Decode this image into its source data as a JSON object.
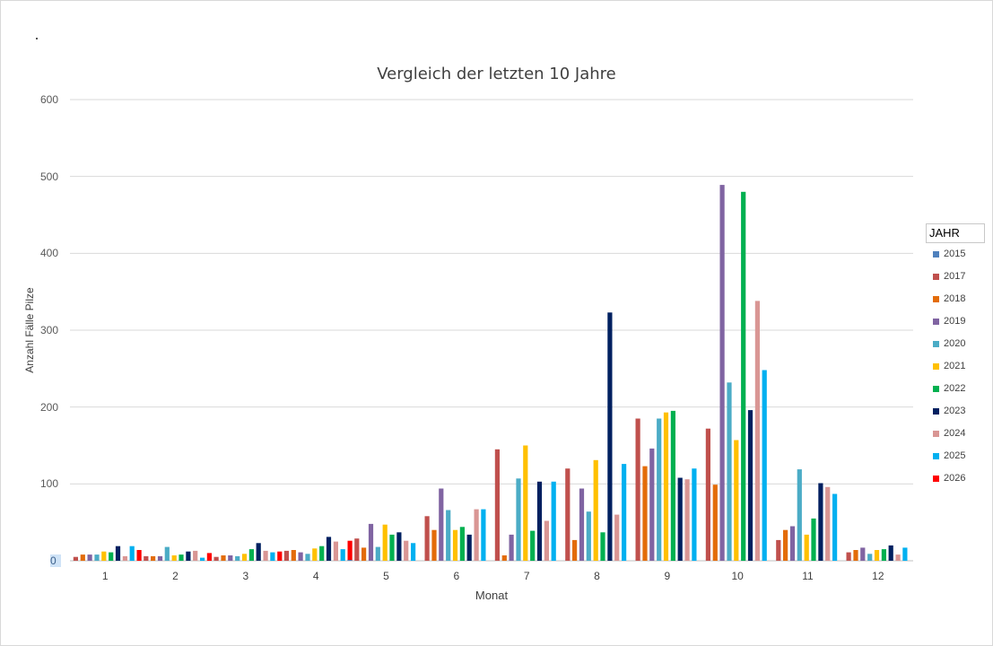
{
  "chart_data": {
    "type": "bar",
    "title": "Vergleich der letzten 10 Jahre",
    "xlabel": "Monat",
    "ylabel": "Anzahl Fälle Pilze",
    "ylim": [
      0,
      600
    ],
    "yticks": [
      "0",
      "100",
      "200",
      "300",
      "400",
      "500",
      "600"
    ],
    "grid": true,
    "legend_position": "right",
    "legend_title": "JAHR",
    "categories": [
      "1",
      "2",
      "3",
      "4",
      "5",
      "6",
      "7",
      "8",
      "9",
      "10",
      "11",
      "12"
    ],
    "series": [
      {
        "name": "2015",
        "color": "#4f81bd",
        "values": [
          null,
          null,
          null,
          null,
          1,
          null,
          null,
          null,
          null,
          null,
          null,
          null
        ]
      },
      {
        "name": "2017",
        "color": "#c0504d",
        "values": [
          5,
          6,
          5,
          13,
          29,
          58,
          145,
          120,
          185,
          172,
          27,
          11
        ]
      },
      {
        "name": "2018",
        "color": "#e36c09",
        "values": [
          8,
          6,
          7,
          14,
          17,
          40,
          7,
          27,
          123,
          99,
          40,
          14
        ]
      },
      {
        "name": "2019",
        "color": "#8064a2",
        "values": [
          8,
          6,
          7,
          11,
          48,
          94,
          34,
          94,
          146,
          489,
          45,
          17
        ]
      },
      {
        "name": "2020",
        "color": "#4bacc6",
        "values": [
          8,
          18,
          6,
          9,
          18,
          66,
          107,
          64,
          185,
          232,
          119,
          9
        ]
      },
      {
        "name": "2021",
        "color": "#ffc000",
        "values": [
          12,
          7,
          9,
          16,
          47,
          40,
          150,
          131,
          193,
          157,
          34,
          14
        ]
      },
      {
        "name": "2022",
        "color": "#00b050",
        "values": [
          11,
          8,
          15,
          19,
          34,
          44,
          39,
          37,
          195,
          480,
          55,
          15
        ]
      },
      {
        "name": "2023",
        "color": "#002060",
        "values": [
          19,
          12,
          23,
          31,
          37,
          34,
          103,
          323,
          108,
          196,
          101,
          20
        ]
      },
      {
        "name": "2024",
        "color": "#d99694",
        "values": [
          6,
          13,
          13,
          25,
          26,
          67,
          52,
          60,
          106,
          338,
          96,
          8
        ]
      },
      {
        "name": "2025",
        "color": "#00b0f0",
        "values": [
          19,
          4,
          11,
          15,
          23,
          67,
          103,
          126,
          120,
          248,
          87,
          17
        ]
      },
      {
        "name": "2026",
        "color": "#ff0000",
        "values": [
          14,
          10,
          12,
          26,
          null,
          null,
          null,
          null,
          null,
          null,
          null,
          null
        ]
      }
    ]
  }
}
